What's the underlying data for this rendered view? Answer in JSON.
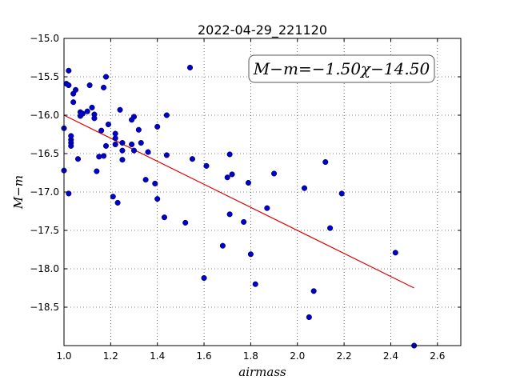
{
  "chart_data": {
    "type": "scatter",
    "title": "2022-04-29_221120",
    "xlabel": "airmass",
    "ylabel": "M−m",
    "xlim": [
      1.0,
      2.7
    ],
    "ylim": [
      -19.0,
      -15.0
    ],
    "y_inverted": true,
    "grid": true,
    "xticks": [
      1.0,
      1.2,
      1.4,
      1.6,
      1.8,
      2.0,
      2.2,
      2.4,
      2.6
    ],
    "xtick_labels": [
      "1.0",
      "1.2",
      "1.4",
      "1.6",
      "1.8",
      "2.0",
      "2.2",
      "2.4",
      "2.6"
    ],
    "yticks": [
      -15.0,
      -15.5,
      -16.0,
      -16.5,
      -17.0,
      -17.5,
      -18.0,
      -18.5
    ],
    "ytick_labels": [
      "−15.0",
      "−15.5",
      "−16.0",
      "−16.5",
      "−17.0",
      "−17.5",
      "−18.0",
      "−18.5"
    ],
    "annotation": "M−m=−1.50χ−14.50",
    "point_color": "#0000cc",
    "fit_color": "#dd0000",
    "fit": {
      "slope": -1.5,
      "intercept": -14.5,
      "x_range": [
        1.0,
        2.5
      ]
    },
    "points": [
      [
        1.0,
        -16.17
      ],
      [
        1.0,
        -16.72
      ],
      [
        1.01,
        -15.59
      ],
      [
        1.02,
        -15.42
      ],
      [
        1.02,
        -15.61
      ],
      [
        1.02,
        -17.02
      ],
      [
        1.03,
        -16.32
      ],
      [
        1.03,
        -16.27
      ],
      [
        1.03,
        -16.36
      ],
      [
        1.03,
        -16.4
      ],
      [
        1.04,
        -15.72
      ],
      [
        1.04,
        -15.83
      ],
      [
        1.05,
        -15.67
      ],
      [
        1.06,
        -16.57
      ],
      [
        1.07,
        -16.01
      ],
      [
        1.07,
        -15.96
      ],
      [
        1.08,
        -15.98
      ],
      [
        1.1,
        -15.95
      ],
      [
        1.11,
        -15.61
      ],
      [
        1.12,
        -15.9
      ],
      [
        1.13,
        -16.04
      ],
      [
        1.13,
        -15.99
      ],
      [
        1.14,
        -16.73
      ],
      [
        1.15,
        -16.54
      ],
      [
        1.16,
        -16.2
      ],
      [
        1.17,
        -15.64
      ],
      [
        1.17,
        -16.53
      ],
      [
        1.18,
        -15.5
      ],
      [
        1.18,
        -16.4
      ],
      [
        1.19,
        -16.12
      ],
      [
        1.21,
        -17.06
      ],
      [
        1.22,
        -16.3
      ],
      [
        1.22,
        -16.24
      ],
      [
        1.22,
        -16.38
      ],
      [
        1.23,
        -17.14
      ],
      [
        1.24,
        -15.93
      ],
      [
        1.25,
        -16.46
      ],
      [
        1.25,
        -16.36
      ],
      [
        1.25,
        -16.58
      ],
      [
        1.29,
        -16.06
      ],
      [
        1.29,
        -16.38
      ],
      [
        1.3,
        -16.02
      ],
      [
        1.3,
        -16.46
      ],
      [
        1.32,
        -16.19
      ],
      [
        1.33,
        -16.36
      ],
      [
        1.35,
        -16.84
      ],
      [
        1.36,
        -16.48
      ],
      [
        1.39,
        -16.89
      ],
      [
        1.4,
        -17.09
      ],
      [
        1.4,
        -16.15
      ],
      [
        1.43,
        -17.33
      ],
      [
        1.44,
        -16.0
      ],
      [
        1.44,
        -16.52
      ],
      [
        1.52,
        -17.4
      ],
      [
        1.54,
        -15.38
      ],
      [
        1.55,
        -16.57
      ],
      [
        1.6,
        -18.12
      ],
      [
        1.61,
        -16.66
      ],
      [
        1.68,
        -17.7
      ],
      [
        1.7,
        -16.81
      ],
      [
        1.71,
        -16.51
      ],
      [
        1.71,
        -17.29
      ],
      [
        1.72,
        -16.77
      ],
      [
        1.77,
        -17.39
      ],
      [
        1.79,
        -16.88
      ],
      [
        1.8,
        -17.81
      ],
      [
        1.82,
        -18.2
      ],
      [
        1.87,
        -17.21
      ],
      [
        1.9,
        -16.76
      ],
      [
        2.03,
        -16.95
      ],
      [
        2.05,
        -18.63
      ],
      [
        2.07,
        -18.29
      ],
      [
        2.12,
        -16.61
      ],
      [
        2.14,
        -17.47
      ],
      [
        2.19,
        -17.02
      ],
      [
        2.42,
        -17.79
      ],
      [
        2.5,
        -19.0
      ]
    ]
  }
}
